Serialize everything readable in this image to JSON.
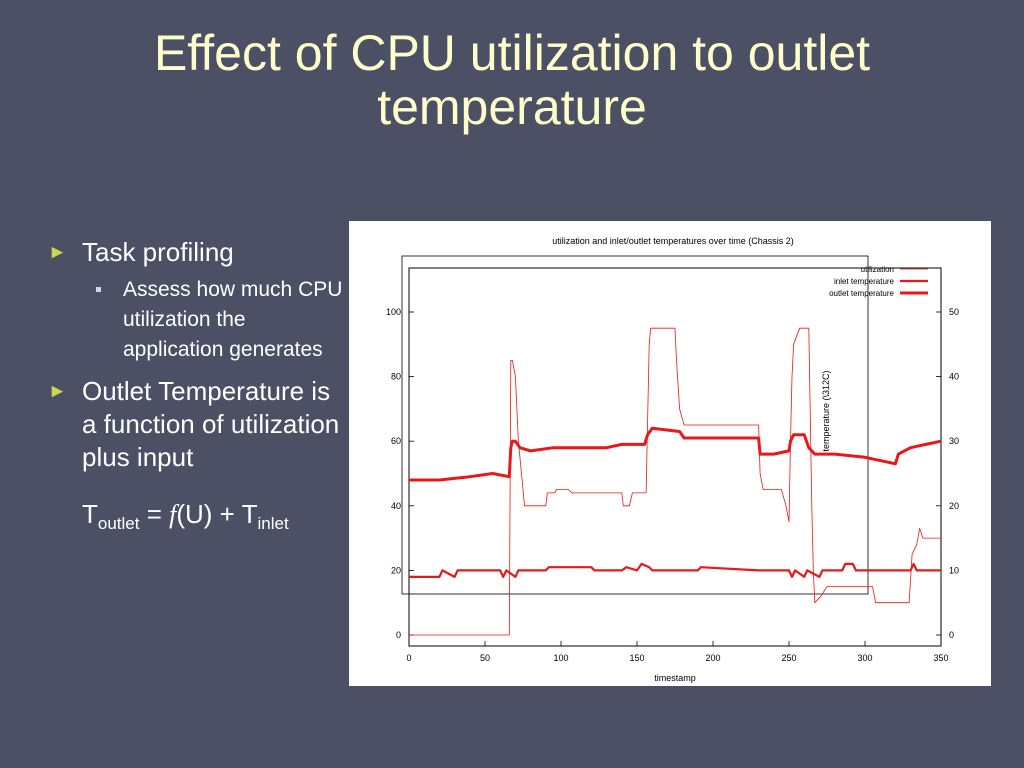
{
  "slide": {
    "title": "Effect of CPU utilization to outlet temperature"
  },
  "bullets": {
    "b1": "Task profiling",
    "b1_sub": "Assess how much CPU utilization the application generates",
    "b2": "Outlet Temperature is a function of utilization plus input",
    "formula": {
      "t1": "T",
      "sub1": "outlet",
      "eq": " = ",
      "f": "f",
      "args": "(U) + T",
      "sub2": "inlet"
    }
  },
  "colors": {
    "background": "#4b5064",
    "title": "#ffffcc",
    "bullet_arrow": "#c8d850",
    "series": "#e8181a"
  },
  "chart_data": {
    "type": "line",
    "title": "utilization and inlet/outlet temperatures over time (Chassis 2)",
    "xlabel": "timestamp",
    "ylabel_right": "temperature (\\312C)",
    "xlim": [
      0,
      350
    ],
    "ylim_left": [
      0,
      100
    ],
    "ylim_right": [
      0,
      50
    ],
    "xticks": [
      0,
      50,
      100,
      150,
      200,
      250,
      300,
      350
    ],
    "yticks_left": [
      0,
      20,
      40,
      60,
      80,
      100
    ],
    "yticks_right": [
      0,
      10,
      20,
      30,
      40,
      50
    ],
    "legend_position": "top-right",
    "series": [
      {
        "name": "utilization",
        "axis": "left",
        "points": [
          [
            0,
            0
          ],
          [
            66,
            0
          ],
          [
            67,
            85
          ],
          [
            68,
            85
          ],
          [
            70,
            80
          ],
          [
            72,
            60
          ],
          [
            75,
            45
          ],
          [
            76,
            40
          ],
          [
            90,
            40
          ],
          [
            91,
            44
          ],
          [
            96,
            44
          ],
          [
            97,
            45
          ],
          [
            105,
            45
          ],
          [
            107,
            44
          ],
          [
            140,
            44
          ],
          [
            141,
            40
          ],
          [
            145,
            40
          ],
          [
            147,
            44
          ],
          [
            156,
            44
          ],
          [
            158,
            90
          ],
          [
            159,
            95
          ],
          [
            175,
            95
          ],
          [
            176,
            85
          ],
          [
            178,
            70
          ],
          [
            181,
            65
          ],
          [
            230,
            65
          ],
          [
            231,
            50
          ],
          [
            233,
            45
          ],
          [
            245,
            45
          ],
          [
            248,
            40
          ],
          [
            250,
            35
          ],
          [
            251,
            60
          ],
          [
            252,
            80
          ],
          [
            253,
            90
          ],
          [
            257,
            95
          ],
          [
            263,
            95
          ],
          [
            265,
            40
          ],
          [
            266,
            20
          ],
          [
            267,
            10
          ],
          [
            271,
            12
          ],
          [
            275,
            15
          ],
          [
            305,
            15
          ],
          [
            307,
            10
          ],
          [
            329,
            10
          ],
          [
            331,
            25
          ],
          [
            334,
            28
          ],
          [
            336,
            33
          ],
          [
            338,
            30
          ],
          [
            350,
            30
          ]
        ]
      },
      {
        "name": "inlet temperature",
        "axis": "right",
        "points": [
          [
            0,
            9
          ],
          [
            20,
            9
          ],
          [
            22,
            10
          ],
          [
            30,
            9
          ],
          [
            32,
            10
          ],
          [
            60,
            10
          ],
          [
            62,
            9
          ],
          [
            64,
            10
          ],
          [
            70,
            9
          ],
          [
            72,
            10
          ],
          [
            80,
            10
          ],
          [
            90,
            10
          ],
          [
            92,
            10.5
          ],
          [
            120,
            10.5
          ],
          [
            122,
            10
          ],
          [
            140,
            10
          ],
          [
            143,
            10.5
          ],
          [
            150,
            10
          ],
          [
            153,
            11
          ],
          [
            158,
            10.5
          ],
          [
            160,
            10
          ],
          [
            190,
            10
          ],
          [
            192,
            10.5
          ],
          [
            230,
            10
          ],
          [
            250,
            10
          ],
          [
            252,
            9
          ],
          [
            254,
            10
          ],
          [
            260,
            9
          ],
          [
            262,
            10
          ],
          [
            270,
            9
          ],
          [
            272,
            10
          ],
          [
            285,
            10
          ],
          [
            287,
            11
          ],
          [
            292,
            11
          ],
          [
            294,
            10
          ],
          [
            330,
            10
          ],
          [
            332,
            11
          ],
          [
            334,
            10
          ],
          [
            350,
            10
          ]
        ]
      },
      {
        "name": "outlet temperature",
        "axis": "right",
        "points": [
          [
            0,
            24
          ],
          [
            20,
            24
          ],
          [
            40,
            24.5
          ],
          [
            55,
            25
          ],
          [
            66,
            24.5
          ],
          [
            67,
            29
          ],
          [
            68,
            30
          ],
          [
            70,
            30
          ],
          [
            73,
            29
          ],
          [
            80,
            28.5
          ],
          [
            95,
            29
          ],
          [
            110,
            29
          ],
          [
            130,
            29
          ],
          [
            140,
            29.5
          ],
          [
            155,
            29.5
          ],
          [
            157,
            31
          ],
          [
            160,
            32
          ],
          [
            178,
            31.5
          ],
          [
            181,
            30.5
          ],
          [
            230,
            30.5
          ],
          [
            231,
            28
          ],
          [
            240,
            28
          ],
          [
            250,
            28.5
          ],
          [
            251,
            30
          ],
          [
            253,
            31
          ],
          [
            260,
            31
          ],
          [
            263,
            29
          ],
          [
            267,
            28
          ],
          [
            280,
            28
          ],
          [
            300,
            27.5
          ],
          [
            320,
            26.5
          ],
          [
            322,
            28
          ],
          [
            330,
            29
          ],
          [
            340,
            29.5
          ],
          [
            350,
            30
          ]
        ]
      }
    ]
  }
}
